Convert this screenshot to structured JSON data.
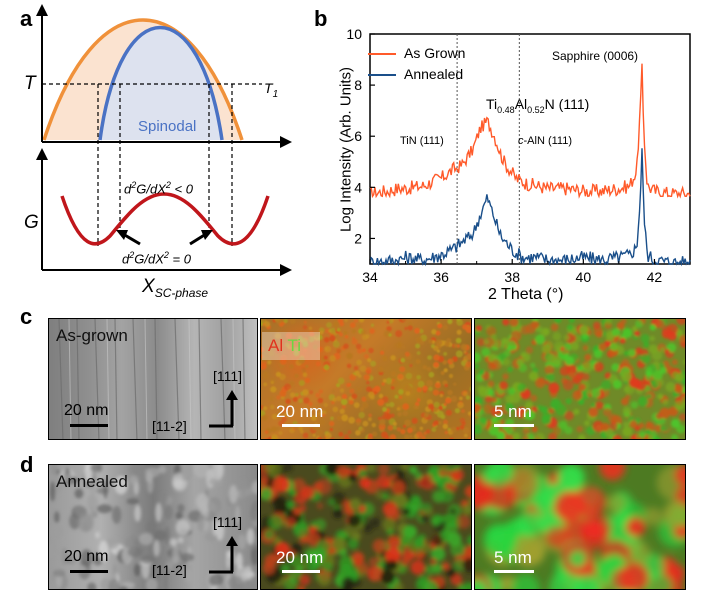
{
  "panels": {
    "a": {
      "letter": "a",
      "T_label": "T",
      "T1_label": "T",
      "T1_sub": "1",
      "spinodal_label": "Spinodal",
      "G_label": "G",
      "curv_neg_1": "d",
      "curv_neg_2": "2",
      "curv_neg_3": "G/dX",
      "curv_neg_4": "2",
      "curv_neg_5": " < 0",
      "curv_zero_1": "d",
      "curv_zero_2": "2",
      "curv_zero_3": "G/dX",
      "curv_zero_4": "2",
      "curv_zero_5": " = 0",
      "x_main": "X",
      "x_sub": "SC-phase",
      "colors": {
        "binodal": "#f0913a",
        "binodal_fill": "#fbe3d0",
        "spinodal": "#4a72c4",
        "spinodal_fill": "#dde2ef",
        "free_energy": "#c0161b"
      }
    },
    "b": {
      "letter": "b",
      "legend_grown": "As Grown",
      "legend_annealed": "Annealed",
      "sapphire_label": "Sapphire (0006)",
      "tialn_main": "Ti",
      "tialn_sub1": "0.48",
      "tialn_al": "Al",
      "tialn_sub2": "0.52",
      "tialn_end": "N (111)",
      "tin_label": "TiN (111)",
      "aln_label_c": "c",
      "aln_label_rest": "-AlN (111)",
      "ylabel": "Log Intensity (Arb. Units)",
      "xlabel": "2 Theta (°)"
    },
    "c": {
      "letter": "c",
      "as_grown": "As-grown",
      "al": "Al",
      "ti": "Ti",
      "scale1": "20 nm",
      "scale2": "20 nm",
      "scale3": "5 nm",
      "dir_up": "[111]",
      "dir_right": "[11-2]"
    },
    "d": {
      "letter": "d",
      "annealed": "Annealed",
      "scale1": "20 nm",
      "scale2": "20 nm",
      "scale3": "5 nm",
      "dir_up": "[111]",
      "dir_right": "[11-2]"
    }
  },
  "chart_data": {
    "type": "line",
    "title": "",
    "xlabel": "2 Theta (°)",
    "ylabel": "Log Intensity (Arb. Units)",
    "xlim": [
      34,
      43
    ],
    "ylim": [
      1,
      10
    ],
    "xticks": [
      34,
      36,
      38,
      40,
      42
    ],
    "yticks": [
      2,
      4,
      6,
      8,
      10
    ],
    "legend": "top-left",
    "reference_lines": [
      36.45,
      38.2
    ],
    "series": [
      {
        "name": "As Grown",
        "color": "#ff5a2a",
        "x": [
          34.0,
          34.5,
          34.8,
          35.0,
          35.5,
          35.8,
          36.0,
          36.3,
          36.6,
          36.9,
          37.1,
          37.3,
          37.5,
          37.7,
          37.9,
          38.1,
          38.4,
          38.7,
          39.0,
          39.5,
          40.0,
          40.5,
          41.0,
          41.3,
          41.5,
          41.6,
          41.65,
          41.7,
          41.8,
          42.0,
          42.5,
          43.0
        ],
        "y": [
          3.7,
          3.8,
          3.9,
          3.9,
          4.0,
          4.2,
          4.3,
          4.6,
          4.9,
          5.5,
          6.3,
          6.6,
          6.0,
          5.2,
          4.7,
          4.3,
          4.1,
          4.0,
          3.9,
          3.9,
          3.8,
          3.8,
          3.9,
          4.0,
          4.6,
          7.0,
          8.6,
          6.2,
          4.0,
          3.8,
          3.7,
          3.7
        ]
      },
      {
        "name": "Annealed",
        "color": "#1a4f8a",
        "x": [
          34.0,
          34.8,
          35.0,
          35.5,
          36.0,
          36.3,
          36.6,
          36.9,
          37.1,
          37.3,
          37.5,
          37.7,
          38.0,
          38.3,
          38.7,
          39.0,
          39.5,
          40.0,
          40.5,
          41.0,
          41.3,
          41.5,
          41.6,
          41.65,
          41.7,
          41.8,
          42.0,
          42.5,
          43.0
        ],
        "y": [
          1.0,
          1.1,
          1.2,
          1.1,
          1.3,
          1.5,
          1.8,
          2.2,
          2.9,
          3.6,
          2.8,
          2.0,
          1.5,
          1.2,
          1.2,
          1.1,
          1.1,
          1.2,
          1.1,
          1.2,
          1.3,
          1.6,
          3.5,
          5.5,
          3.0,
          1.3,
          1.1,
          1.0,
          1.0
        ]
      }
    ]
  }
}
